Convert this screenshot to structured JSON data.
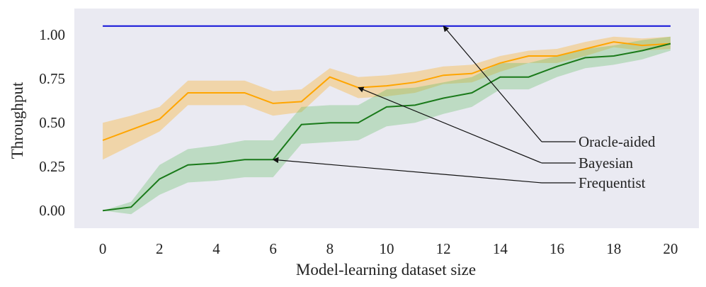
{
  "chart_data": {
    "type": "line",
    "xlabel": "Model-learning dataset size",
    "ylabel": "Throughput",
    "xlim": [
      -1,
      21
    ],
    "ylim": [
      -0.1,
      1.15
    ],
    "xticks": [
      0,
      2,
      4,
      6,
      8,
      10,
      12,
      14,
      16,
      18,
      20
    ],
    "yticks": [
      0.0,
      0.25,
      0.5,
      0.75,
      1.0
    ],
    "ytick_labels": [
      "0.00",
      "0.25",
      "0.50",
      "0.75",
      "1.00"
    ],
    "grid": false,
    "background": "#eaeaf2",
    "x": [
      0,
      1,
      2,
      3,
      4,
      5,
      6,
      7,
      8,
      9,
      10,
      11,
      12,
      13,
      14,
      15,
      16,
      17,
      18,
      19,
      20
    ],
    "series": [
      {
        "key": "oracle",
        "color": "#1010d8",
        "values": [
          1.05,
          1.05,
          1.05,
          1.05,
          1.05,
          1.05,
          1.05,
          1.05,
          1.05,
          1.05,
          1.05,
          1.05,
          1.05,
          1.05,
          1.05,
          1.05,
          1.05,
          1.05,
          1.05,
          1.05,
          1.05
        ]
      },
      {
        "key": "bayesian",
        "color": "#ffa500",
        "values": [
          0.4,
          0.46,
          0.52,
          0.67,
          0.67,
          0.67,
          0.61,
          0.62,
          0.76,
          0.7,
          0.71,
          0.73,
          0.77,
          0.78,
          0.84,
          0.88,
          0.88,
          0.92,
          0.96,
          0.94,
          0.95
        ],
        "lower": [
          0.29,
          0.37,
          0.45,
          0.6,
          0.6,
          0.6,
          0.54,
          0.56,
          0.71,
          0.64,
          0.65,
          0.67,
          0.72,
          0.73,
          0.79,
          0.84,
          0.84,
          0.88,
          0.93,
          0.91,
          0.92
        ],
        "upper": [
          0.5,
          0.54,
          0.59,
          0.74,
          0.74,
          0.74,
          0.68,
          0.69,
          0.81,
          0.76,
          0.77,
          0.79,
          0.82,
          0.83,
          0.88,
          0.91,
          0.92,
          0.96,
          0.99,
          0.98,
          0.99
        ]
      },
      {
        "key": "frequentist",
        "color": "#1a7a1a",
        "band_color": "#57b857",
        "values": [
          0.0,
          0.02,
          0.18,
          0.26,
          0.27,
          0.29,
          0.29,
          0.49,
          0.5,
          0.5,
          0.59,
          0.6,
          0.64,
          0.67,
          0.76,
          0.76,
          0.82,
          0.87,
          0.88,
          0.91,
          0.95
        ],
        "lower": [
          0.0,
          -0.02,
          0.09,
          0.16,
          0.17,
          0.19,
          0.19,
          0.38,
          0.39,
          0.4,
          0.48,
          0.5,
          0.55,
          0.59,
          0.69,
          0.69,
          0.76,
          0.81,
          0.83,
          0.86,
          0.91
        ],
        "upper": [
          0.0,
          0.05,
          0.26,
          0.35,
          0.37,
          0.4,
          0.4,
          0.59,
          0.6,
          0.6,
          0.69,
          0.7,
          0.73,
          0.76,
          0.84,
          0.84,
          0.88,
          0.92,
          0.94,
          0.97,
          0.99
        ]
      }
    ],
    "annotations": [
      {
        "text": "Oracle-aided",
        "series": "oracle",
        "point_x": 12
      },
      {
        "text": "Bayesian",
        "series": "bayesian",
        "point_x": 9
      },
      {
        "text": "Frequentist",
        "series": "frequentist",
        "point_x": 6
      }
    ]
  }
}
